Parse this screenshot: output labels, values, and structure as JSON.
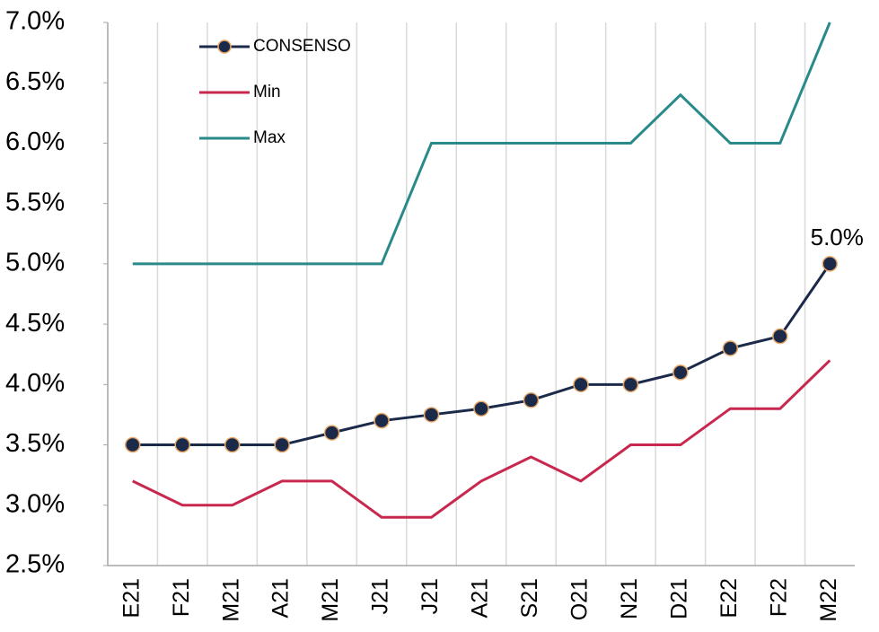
{
  "chart_data": {
    "type": "line",
    "categories": [
      "E21",
      "F21",
      "M21",
      "A21",
      "M21",
      "J21",
      "J21",
      "A21",
      "S21",
      "O21",
      "N21",
      "D21",
      "E22",
      "F22",
      "M22"
    ],
    "series": [
      {
        "name": "CONSENSO",
        "color": "#1c2a4a",
        "marker": true,
        "marker_edge": "#e8a868",
        "values": [
          3.5,
          3.5,
          3.5,
          3.5,
          3.6,
          3.7,
          3.75,
          3.8,
          3.87,
          4.0,
          4.0,
          4.1,
          4.3,
          4.4,
          5.0
        ],
        "value_labels": [
          null,
          null,
          null,
          null,
          null,
          null,
          null,
          null,
          null,
          null,
          null,
          null,
          null,
          null,
          "5.0%"
        ]
      },
      {
        "name": "Min",
        "color": "#c8284e",
        "marker": false,
        "values": [
          3.2,
          3.0,
          3.0,
          3.2,
          3.2,
          2.9,
          2.9,
          3.2,
          3.4,
          3.2,
          3.5,
          3.5,
          3.8,
          3.8,
          4.2
        ]
      },
      {
        "name": "Max",
        "color": "#2a8a8a",
        "marker": false,
        "values": [
          5.0,
          5.0,
          5.0,
          5.0,
          5.0,
          5.0,
          6.0,
          6.0,
          6.0,
          6.0,
          6.0,
          6.4,
          6.0,
          6.0,
          7.0
        ]
      }
    ],
    "ylim": [
      2.5,
      7.0
    ],
    "yticks": [
      {
        "value": 2.5,
        "label": "2.5%"
      },
      {
        "value": 3.0,
        "label": "3.0%"
      },
      {
        "value": 3.5,
        "label": "3.5%"
      },
      {
        "value": 4.0,
        "label": "4.0%"
      },
      {
        "value": 4.5,
        "label": "4.5%"
      },
      {
        "value": 5.0,
        "label": "5.0%"
      },
      {
        "value": 5.5,
        "label": "5.5%"
      },
      {
        "value": 6.0,
        "label": "6.0%"
      },
      {
        "value": 6.5,
        "label": "6.5%"
      },
      {
        "value": 7.0,
        "label": "7.0%"
      }
    ],
    "legend": "upper left"
  }
}
